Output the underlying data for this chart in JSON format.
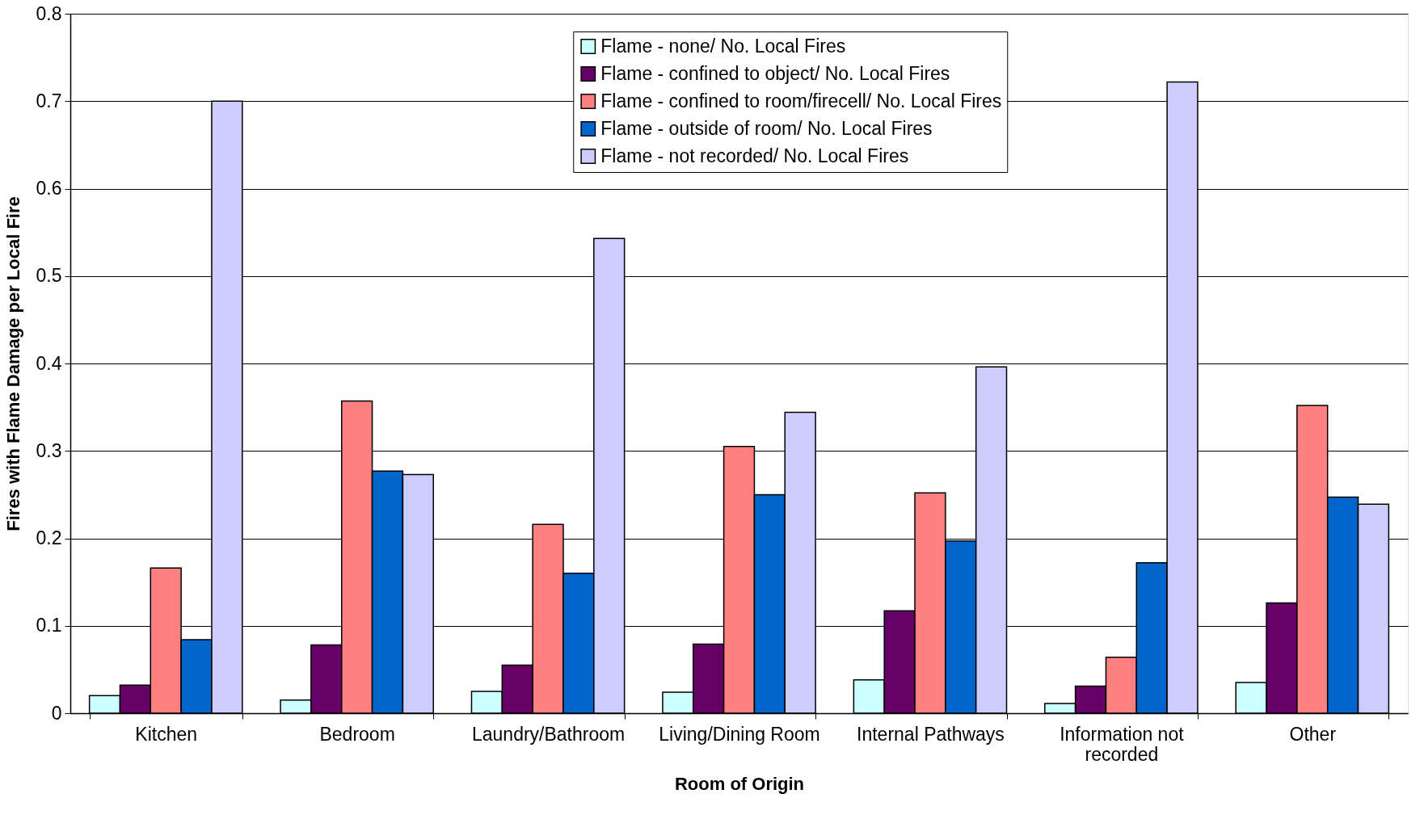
{
  "chart_data": {
    "type": "bar",
    "xlabel": "Room of Origin",
    "ylabel": "Fires with Flame Damage per Local Fire",
    "categories": [
      "Kitchen",
      "Bedroom",
      "Laundry/Bathroom",
      "Living/Dining Room",
      "Internal Pathways",
      "Information not recorded",
      "Other"
    ],
    "series": [
      {
        "name": "Flame - none/ No. Local Fires",
        "color": "#ccffff",
        "values": [
          0.02,
          0.015,
          0.025,
          0.024,
          0.038,
          0.011,
          0.035
        ]
      },
      {
        "name": "Flame - confined to object/ No. Local Fires",
        "color": "#660066",
        "values": [
          0.032,
          0.078,
          0.055,
          0.079,
          0.117,
          0.031,
          0.126
        ]
      },
      {
        "name": "Flame - confined to room/firecell/ No. Local Fires",
        "color": "#ff8080",
        "values": [
          0.166,
          0.357,
          0.216,
          0.305,
          0.252,
          0.064,
          0.352
        ]
      },
      {
        "name": "Flame - outside of room/ No. Local Fires",
        "color": "#0066cc",
        "values": [
          0.084,
          0.277,
          0.16,
          0.25,
          0.197,
          0.172,
          0.247
        ]
      },
      {
        "name": "Flame - not recorded/ No. Local Fires",
        "color": "#ccccff",
        "values": [
          0.7,
          0.273,
          0.543,
          0.344,
          0.396,
          0.722,
          0.239
        ]
      }
    ],
    "ylim": [
      0,
      0.8
    ],
    "yticks": [
      0,
      0.1,
      0.2,
      0.3,
      0.4,
      0.5,
      0.6,
      0.7,
      0.8
    ],
    "grid": "y",
    "legend": "top"
  }
}
